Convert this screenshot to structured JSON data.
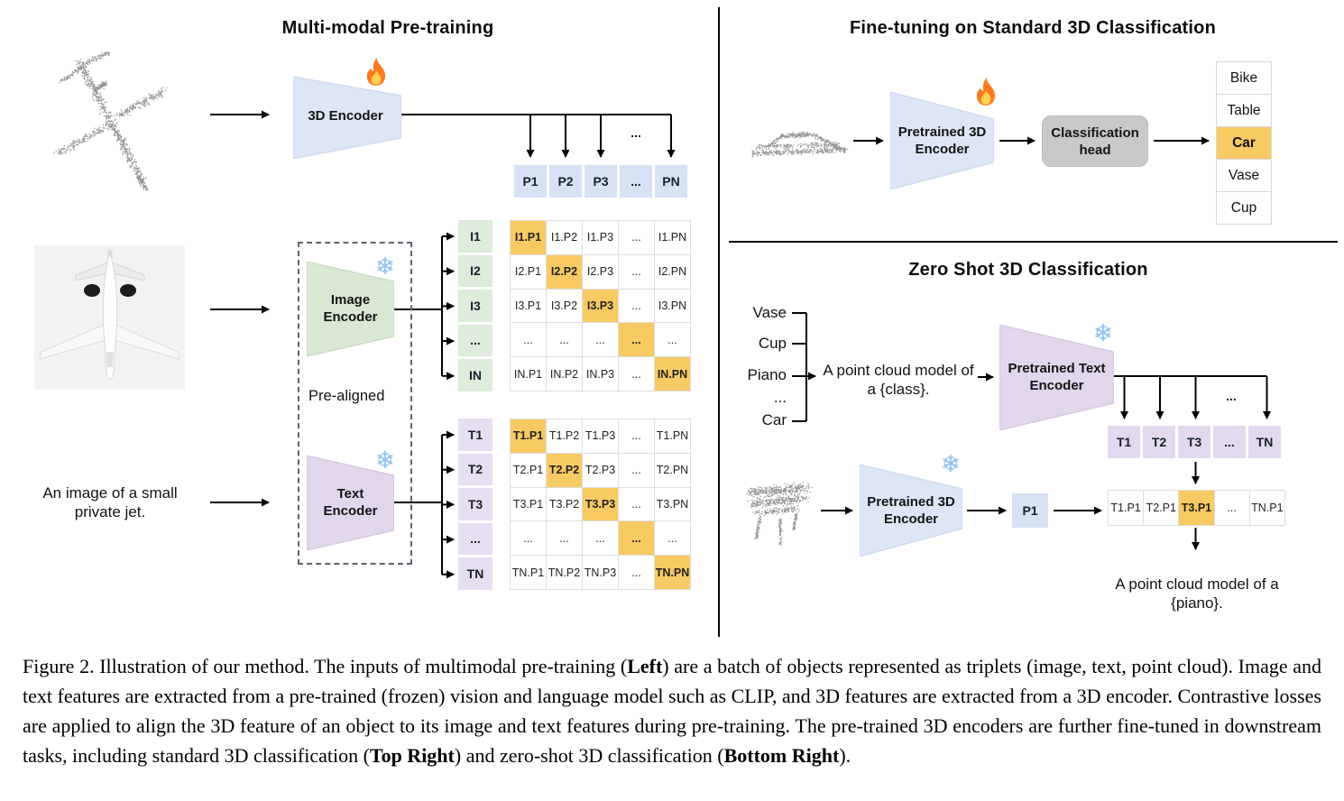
{
  "colors": {
    "highlight_orange": "#F8CA63",
    "blue_fill": "#DCE6F6",
    "green_fill": "#D8E8D3",
    "purple_fill": "#E1D6EC",
    "blue_cell": "#D7E3F5",
    "green_cell": "#DDECDB",
    "purple_cell": "#E7DEF1",
    "head_gray": "#C9C9C9"
  },
  "pretraining": {
    "title": "Multi-modal Pre-training",
    "encoder_3d_label": "3D Encoder",
    "pre_aligned_label": "Pre-aligned",
    "image_encoder_label": [
      "Image",
      "Encoder"
    ],
    "text_encoder_label": [
      "Text",
      "Encoder"
    ],
    "image_caption": [
      "An image of a small",
      "private jet."
    ],
    "ellipsis": "...",
    "p_header": [
      "P1",
      "P2",
      "P3",
      "...",
      "PN"
    ],
    "i_labels": [
      "I1",
      "I2",
      "I3",
      "...",
      "IN"
    ],
    "t_labels": [
      "T1",
      "T2",
      "T3",
      "...",
      "TN"
    ],
    "i_matrix": [
      [
        "I1.P1",
        "I1.P2",
        "I1.P3",
        "...",
        "I1.PN"
      ],
      [
        "I2.P1",
        "I2.P2",
        "I2.P3",
        "...",
        "I2.PN"
      ],
      [
        "I3.P1",
        "I3.P2",
        "I3.P3",
        "...",
        "I3.PN"
      ],
      [
        "...",
        "...",
        "...",
        "...",
        "..."
      ],
      [
        "IN.P1",
        "IN.P2",
        "IN.P3",
        "...",
        "IN.PN"
      ]
    ],
    "t_matrix": [
      [
        "T1.P1",
        "T1.P2",
        "T1.P3",
        "...",
        "T1.PN"
      ],
      [
        "T2.P1",
        "T2.P2",
        "T2.P3",
        "...",
        "T2.PN"
      ],
      [
        "T3.P1",
        "T3.P2",
        "T3.P3",
        "...",
        "T3.PN"
      ],
      [
        "...",
        "...",
        "...",
        "...",
        "..."
      ],
      [
        "TN.P1",
        "TN.P2",
        "TN.P3",
        "...",
        "TN.PN"
      ]
    ]
  },
  "finetune": {
    "title": "Fine-tuning on Standard 3D Classification",
    "encoder_label": [
      "Pretrained 3D",
      "Encoder"
    ],
    "head_label": [
      "Classification",
      "head"
    ],
    "classes": [
      "Bike",
      "Table",
      "Car",
      "Vase",
      "Cup"
    ],
    "predicted_class": "Car"
  },
  "zeroshot": {
    "title": "Zero Shot 3D Classification",
    "candidate_classes": [
      "Vase",
      "Cup",
      "Piano",
      "...",
      "Car"
    ],
    "prompt": [
      "A point cloud model of",
      "a {class}."
    ],
    "text_encoder_label": [
      "Pretrained Text",
      "Encoder"
    ],
    "encoder_label": [
      "Pretrained 3D",
      "Encoder"
    ],
    "t_header": [
      "T1",
      "T2",
      "T3",
      "...",
      "TN"
    ],
    "p_box": "P1",
    "similarity_row": [
      "T1.P1",
      "T2.P1",
      "T3.P1",
      "...",
      "TN.P1"
    ],
    "predicted": "T3.P1",
    "ellipsis": "...",
    "result_caption": "A point cloud model of a {piano}."
  },
  "caption": {
    "segments": [
      {
        "text": "Figure 2. Illustration of our method. The inputs of multimodal pre-training (",
        "bold": false
      },
      {
        "text": "Left",
        "bold": true
      },
      {
        "text": ") are a batch of objects represented as triplets (image, text, point cloud). Image and text features are extracted from a pre-trained (frozen) vision and language model such as CLIP, and 3D features are extracted from a 3D encoder. Contrastive losses are applied to align the 3D feature of an object to its image and text features during pre-training. The pre-trained 3D encoders are further fine-tuned in downstream tasks, including standard 3D classification (",
        "bold": false
      },
      {
        "text": "Top Right",
        "bold": true
      },
      {
        "text": ") and zero-shot 3D classification (",
        "bold": false
      },
      {
        "text": "Bottom Right",
        "bold": true
      },
      {
        "text": ").",
        "bold": false
      }
    ]
  }
}
